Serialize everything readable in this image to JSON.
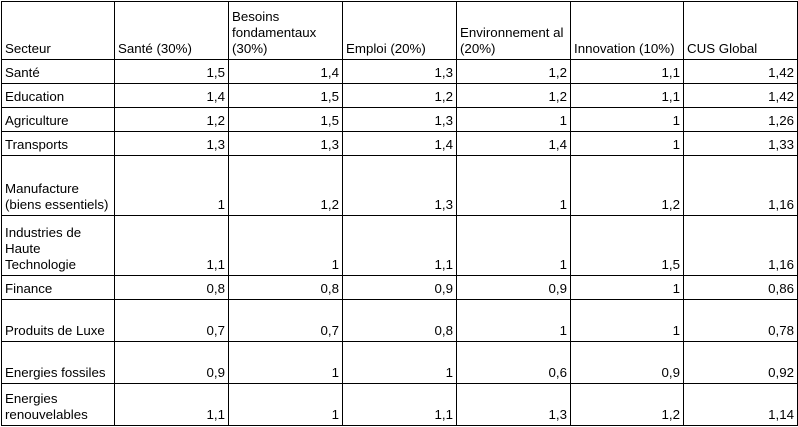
{
  "header": {
    "col_secteur": "Secteur",
    "col_sante": "Santé (30%)",
    "col_besoins": "Besoins fondamentaux (30%)",
    "col_emploi": "Emploi (20%)",
    "col_env": "Environnement al (20%)",
    "col_innov": "Innovation (10%)",
    "col_cus": "CUS Global"
  },
  "rows": [
    {
      "secteur": "Santé",
      "sante": "1,5",
      "besoins": "1,4",
      "emploi": "1,3",
      "env": "1,2",
      "innov": "1,1",
      "cus": "1,42"
    },
    {
      "secteur": "Education",
      "sante": "1,4",
      "besoins": "1,5",
      "emploi": "1,2",
      "env": "1,2",
      "innov": "1,1",
      "cus": "1,42"
    },
    {
      "secteur": "Agriculture",
      "sante": "1,2",
      "besoins": "1,5",
      "emploi": "1,3",
      "env": "1",
      "innov": "1",
      "cus": "1,26"
    },
    {
      "secteur": "Transports",
      "sante": "1,3",
      "besoins": "1,3",
      "emploi": "1,4",
      "env": "1,4",
      "innov": "1",
      "cus": "1,33"
    },
    {
      "secteur": "Manufacture (biens essentiels)",
      "sante": "1",
      "besoins": "1,2",
      "emploi": "1,3",
      "env": "1",
      "innov": "1,2",
      "cus": "1,16"
    },
    {
      "secteur": "Industries de Haute Technologie",
      "sante": "1,1",
      "besoins": "1",
      "emploi": "1,1",
      "env": "1",
      "innov": "1,5",
      "cus": "1,16"
    },
    {
      "secteur": "Finance",
      "sante": "0,8",
      "besoins": "0,8",
      "emploi": "0,9",
      "env": "0,9",
      "innov": "1",
      "cus": "0,86"
    },
    {
      "secteur": "Produits de Luxe",
      "sante": "0,7",
      "besoins": "0,7",
      "emploi": "0,8",
      "env": "1",
      "innov": "1",
      "cus": "0,78"
    },
    {
      "secteur": "Energies fossiles",
      "sante": "0,9",
      "besoins": "1",
      "emploi": "1",
      "env": "0,6",
      "innov": "0,9",
      "cus": "0,92"
    },
    {
      "secteur": "Energies renouvelables",
      "sante": "1,1",
      "besoins": "1",
      "emploi": "1,1",
      "env": "1,3",
      "innov": "1,2",
      "cus": "1,14"
    }
  ]
}
